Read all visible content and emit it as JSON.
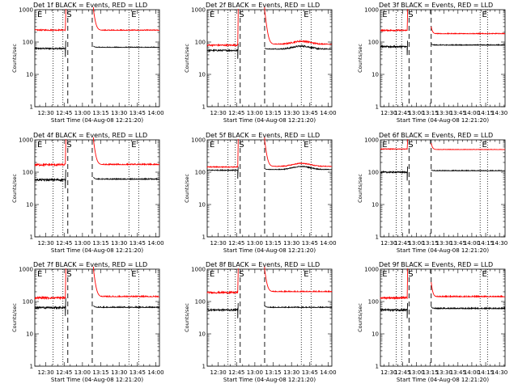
{
  "colors": {
    "events": "#000000",
    "lld": "#ff0000",
    "axis": "#000000",
    "background": "#ffffff"
  },
  "chart_data": [
    {
      "type": "line",
      "title": "Det 1f BLACK = Events, RED = LLD",
      "xlabel": "Start Time (04-Aug-08 12:21:20)",
      "ylabel": "Counts/sec",
      "x_range": [
        "12:21",
        "14:03"
      ],
      "ylim": [
        1,
        1000
      ],
      "y_scale": "log",
      "x_tick_labels": [
        "12:30",
        "12:45",
        "13:00",
        "13:15",
        "13:30",
        "13:45",
        "14:00"
      ],
      "y_tick_labels": [
        "1",
        "10",
        "100",
        "1000"
      ],
      "markers": {
        "dotted": [
          "12:36",
          "12:44",
          "13:38",
          "13:46"
        ],
        "dashed": [
          "12:48",
          "13:08"
        ],
        "labels": {
          "E": [
            "12:23",
            "13:40"
          ],
          "S": [
            "12:47"
          ]
        }
      },
      "gap": [
        "12:47",
        "13:09"
      ],
      "series": [
        {
          "name": "Events",
          "color": "#000000",
          "segments": [
            {
              "start": "12:21",
              "end": "12:46",
              "level": 63,
              "noise": 0.05,
              "spike_to": 110
            },
            {
              "start": "13:09",
              "end": "14:03",
              "level": 68,
              "noise": 0.04,
              "decay_from": 75,
              "hump": 0
            }
          ]
        },
        {
          "name": "LLD",
          "color": "#ff0000",
          "segments": [
            {
              "start": "12:21",
              "end": "12:46",
              "level": 235,
              "noise": 0.04,
              "rise_to": 1000
            },
            {
              "start": "13:09",
              "end": "14:03",
              "level": 230,
              "noise": 0.05,
              "decay_from": 1000,
              "hump": 0
            }
          ]
        }
      ]
    },
    {
      "type": "line",
      "title": "Det 2f BLACK = Events, RED = LLD",
      "xlabel": "Start Time (04-Aug-08 12:21:20)",
      "ylabel": "Counts/sec",
      "x_range": [
        "12:21",
        "14:03"
      ],
      "ylim": [
        1,
        1000
      ],
      "y_scale": "log",
      "x_tick_labels": [
        "12:30",
        "12:45",
        "13:00",
        "13:15",
        "13:30",
        "13:45",
        "14:00"
      ],
      "y_tick_labels": [
        "1",
        "10",
        "100",
        "1000"
      ],
      "markers": {
        "dotted": [
          "12:38",
          "12:44",
          "13:38",
          "13:46"
        ],
        "dashed": [
          "12:48",
          "13:08"
        ],
        "labels": {
          "E": [
            "12:23",
            "13:40"
          ],
          "S": [
            "12:47"
          ]
        }
      },
      "gap": [
        "12:46",
        "13:08"
      ],
      "series": [
        {
          "name": "Events",
          "color": "#000000",
          "segments": [
            {
              "start": "12:21",
              "end": "12:46",
              "level": 55,
              "noise": 0.05,
              "spike_to": 90
            },
            {
              "start": "13:08",
              "end": "14:03",
              "level": 60,
              "noise": 0.05,
              "decay_from": 65,
              "hump": 1
            }
          ]
        },
        {
          "name": "LLD",
          "color": "#ff0000",
          "segments": [
            {
              "start": "12:21",
              "end": "12:46",
              "level": 80,
              "noise": 0.05,
              "rise_to": 1000
            },
            {
              "start": "13:08",
              "end": "14:03",
              "level": 85,
              "noise": 0.05,
              "decay_from": 1000,
              "hump": 1
            }
          ]
        }
      ]
    },
    {
      "type": "line",
      "title": "Det 3f BLACK = Events, RED = LLD",
      "xlabel": "Start Time (04-Aug-08 12:21:20)",
      "ylabel": "Counts/sec",
      "x_range": [
        "12:21",
        "14:36"
      ],
      "ylim": [
        1,
        1000
      ],
      "y_scale": "log",
      "x_tick_labels": [
        "12:30",
        "12:45",
        "13:00",
        "13:15",
        "13:30",
        "13:45",
        "14:00",
        "14:15",
        "14:30"
      ],
      "y_tick_labels": [
        "1",
        "10",
        "100",
        "1000"
      ],
      "markers": {
        "dotted": [
          "12:38",
          "12:44",
          "14:09",
          "14:17"
        ],
        "dashed": [
          "12:52",
          "13:16"
        ],
        "labels": {
          "E": [
            "12:23",
            "14:11"
          ],
          "S": [
            "12:51"
          ]
        }
      },
      "gap": [
        "12:51",
        "13:16"
      ],
      "series": [
        {
          "name": "Events",
          "color": "#000000",
          "segments": [
            {
              "start": "12:21",
              "end": "12:50",
              "level": 72,
              "noise": 0.05,
              "spike_to": 110
            },
            {
              "start": "13:16",
              "end": "14:36",
              "level": 80,
              "noise": 0.04,
              "decay_from": 90,
              "hump": 0
            }
          ]
        },
        {
          "name": "LLD",
          "color": "#ff0000",
          "segments": [
            {
              "start": "12:21",
              "end": "12:50",
              "level": 230,
              "noise": 0.04,
              "rise_to": 1000
            },
            {
              "start": "13:16",
              "end": "14:36",
              "level": 180,
              "noise": 0.04,
              "decay_from": 300,
              "hump": 0
            }
          ]
        }
      ]
    },
    {
      "type": "line",
      "title": "Det 4f BLACK = Events, RED = LLD",
      "xlabel": "Start Time (04-Aug-08 12:21:20)",
      "ylabel": "Counts/sec",
      "x_range": [
        "12:21",
        "14:03"
      ],
      "ylim": [
        1,
        1000
      ],
      "y_scale": "log",
      "x_tick_labels": [
        "12:30",
        "12:45",
        "13:00",
        "13:15",
        "13:30",
        "13:45",
        "14:00"
      ],
      "y_tick_labels": [
        "1",
        "10",
        "100",
        "1000"
      ],
      "markers": {
        "dotted": [
          "12:36",
          "12:44",
          "13:38",
          "13:46"
        ],
        "dashed": [
          "12:48",
          "13:08"
        ],
        "labels": {
          "E": [
            "12:23",
            "13:40"
          ],
          "S": [
            "12:47"
          ]
        }
      },
      "gap": [
        "12:47",
        "13:09"
      ],
      "series": [
        {
          "name": "Events",
          "color": "#000000",
          "segments": [
            {
              "start": "12:21",
              "end": "12:46",
              "level": 58,
              "noise": 0.07,
              "spike_to": 120
            },
            {
              "start": "13:09",
              "end": "14:03",
              "level": 60,
              "noise": 0.06,
              "decay_from": 70,
              "hump": 0
            }
          ]
        },
        {
          "name": "LLD",
          "color": "#ff0000",
          "segments": [
            {
              "start": "12:21",
              "end": "12:46",
              "level": 170,
              "noise": 0.07,
              "rise_to": 1000
            },
            {
              "start": "13:09",
              "end": "14:03",
              "level": 170,
              "noise": 0.07,
              "decay_from": 1000,
              "hump": 0
            }
          ]
        }
      ]
    },
    {
      "type": "line",
      "title": "Det 5f BLACK = Events, RED = LLD",
      "xlabel": "Start Time (04-Aug-08 12:21:20)",
      "ylabel": "Counts/sec",
      "x_range": [
        "12:21",
        "14:03"
      ],
      "ylim": [
        1,
        1000
      ],
      "y_scale": "log",
      "x_tick_labels": [
        "12:30",
        "12:45",
        "13:00",
        "13:15",
        "13:30",
        "13:45",
        "14:00"
      ],
      "y_tick_labels": [
        "1",
        "10",
        "100",
        "1000"
      ],
      "markers": {
        "dotted": [
          "12:38",
          "12:44",
          "13:38",
          "13:46"
        ],
        "dashed": [
          "12:48",
          "13:08"
        ],
        "labels": {
          "E": [
            "12:23",
            "13:40"
          ],
          "S": [
            "12:47"
          ]
        }
      },
      "gap": [
        "12:46",
        "13:08"
      ],
      "series": [
        {
          "name": "Events",
          "color": "#000000",
          "segments": [
            {
              "start": "12:21",
              "end": "12:46",
              "level": 115,
              "noise": 0.03,
              "spike_to": 150
            },
            {
              "start": "13:08",
              "end": "14:03",
              "level": 120,
              "noise": 0.03,
              "decay_from": 130,
              "hump": 1
            }
          ]
        },
        {
          "name": "LLD",
          "color": "#ff0000",
          "segments": [
            {
              "start": "12:21",
              "end": "12:46",
              "level": 145,
              "noise": 0.03,
              "rise_to": 1000
            },
            {
              "start": "13:08",
              "end": "14:03",
              "level": 150,
              "noise": 0.03,
              "decay_from": 1000,
              "hump": 1
            }
          ]
        }
      ]
    },
    {
      "type": "line",
      "title": "Det 6f BLACK = Events, RED = LLD",
      "xlabel": "Start Time (04-Aug-08 12:21:20)",
      "ylabel": "Counts/sec",
      "x_range": [
        "12:21",
        "14:36"
      ],
      "ylim": [
        1,
        1000
      ],
      "y_scale": "log",
      "x_tick_labels": [
        "12:30",
        "12:45",
        "13:00",
        "13:15",
        "13:30",
        "13:45",
        "14:00",
        "14:15",
        "14:30"
      ],
      "y_tick_labels": [
        "1",
        "10",
        "100",
        "1000"
      ],
      "markers": {
        "dotted": [
          "12:38",
          "12:44",
          "14:09",
          "14:17"
        ],
        "dashed": [
          "12:52",
          "13:16"
        ],
        "labels": {
          "E": [
            "12:23",
            "14:11"
          ],
          "S": [
            "12:51"
          ]
        }
      },
      "gap": [
        "12:51",
        "13:16"
      ],
      "series": [
        {
          "name": "Events",
          "color": "#000000",
          "segments": [
            {
              "start": "12:21",
              "end": "12:50",
              "level": 100,
              "noise": 0.04,
              "spike_to": 150
            },
            {
              "start": "13:16",
              "end": "14:36",
              "level": 110,
              "noise": 0.04,
              "decay_from": 120,
              "hump": 0
            }
          ]
        },
        {
          "name": "LLD",
          "color": "#ff0000",
          "segments": [
            {
              "start": "12:21",
              "end": "12:50",
              "level": 520,
              "noise": 0.02,
              "rise_to": 1000
            },
            {
              "start": "13:16",
              "end": "14:36",
              "level": 500,
              "noise": 0.02,
              "decay_from": 800,
              "hump": 0
            }
          ]
        }
      ]
    },
    {
      "type": "line",
      "title": "Det 7f BLACK = Events, RED = LLD",
      "xlabel": "Start Time (04-Aug-08 12:21:20)",
      "ylabel": "Counts/sec",
      "x_range": [
        "12:21",
        "14:03"
      ],
      "ylim": [
        1,
        1000
      ],
      "y_scale": "log",
      "x_tick_labels": [
        "12:30",
        "12:45",
        "13:00",
        "13:15",
        "13:30",
        "13:45",
        "14:00"
      ],
      "y_tick_labels": [
        "1",
        "10",
        "100",
        "1000"
      ],
      "markers": {
        "dotted": [
          "12:36",
          "12:44",
          "13:38",
          "13:46"
        ],
        "dashed": [
          "12:48",
          "13:08"
        ],
        "labels": {
          "E": [
            "12:23",
            "13:40"
          ],
          "S": [
            "12:47"
          ]
        }
      },
      "gap": [
        "12:47",
        "13:09"
      ],
      "series": [
        {
          "name": "Events",
          "color": "#000000",
          "segments": [
            {
              "start": "12:21",
              "end": "12:46",
              "level": 65,
              "noise": 0.07,
              "spike_to": 130
            },
            {
              "start": "13:09",
              "end": "14:03",
              "level": 65,
              "noise": 0.07,
              "decay_from": 75,
              "hump": 0
            }
          ]
        },
        {
          "name": "LLD",
          "color": "#ff0000",
          "segments": [
            {
              "start": "12:21",
              "end": "12:46",
              "level": 130,
              "noise": 0.07,
              "rise_to": 1000
            },
            {
              "start": "13:09",
              "end": "14:03",
              "level": 140,
              "noise": 0.07,
              "decay_from": 1000,
              "hump": 0
            }
          ]
        }
      ]
    },
    {
      "type": "line",
      "title": "Det 8f BLACK = Events, RED = LLD",
      "xlabel": "Start Time (04-Aug-08 12:21:20)",
      "ylabel": "Counts/sec",
      "x_range": [
        "12:21",
        "14:03"
      ],
      "ylim": [
        1,
        1000
      ],
      "y_scale": "log",
      "x_tick_labels": [
        "12:30",
        "12:45",
        "13:00",
        "13:15",
        "13:30",
        "13:45",
        "14:00"
      ],
      "y_tick_labels": [
        "1",
        "10",
        "100",
        "1000"
      ],
      "markers": {
        "dotted": [
          "12:38",
          "12:44",
          "13:38",
          "13:46"
        ],
        "dashed": [
          "12:48",
          "13:08"
        ],
        "labels": {
          "E": [
            "12:23",
            "13:40"
          ],
          "S": [
            "12:47"
          ]
        }
      },
      "gap": [
        "12:46",
        "13:08"
      ],
      "series": [
        {
          "name": "Events",
          "color": "#000000",
          "segments": [
            {
              "start": "12:21",
              "end": "12:46",
              "level": 55,
              "noise": 0.06,
              "spike_to": 90
            },
            {
              "start": "13:08",
              "end": "14:03",
              "level": 65,
              "noise": 0.06,
              "decay_from": 75,
              "hump": 0
            }
          ]
        },
        {
          "name": "LLD",
          "color": "#ff0000",
          "segments": [
            {
              "start": "12:21",
              "end": "12:46",
              "level": 190,
              "noise": 0.06,
              "rise_to": 1000
            },
            {
              "start": "13:08",
              "end": "14:03",
              "level": 200,
              "noise": 0.06,
              "decay_from": 1000,
              "hump": 0
            }
          ]
        }
      ]
    },
    {
      "type": "line",
      "title": "Det 9f BLACK = Events, RED = LLD",
      "xlabel": "Start Time (04-Aug-08 12:21:20)",
      "ylabel": "Counts/sec",
      "x_range": [
        "12:21",
        "14:36"
      ],
      "ylim": [
        1,
        1000
      ],
      "y_scale": "log",
      "x_tick_labels": [
        "12:30",
        "12:45",
        "13:00",
        "13:15",
        "13:30",
        "13:45",
        "14:00",
        "14:15",
        "14:30"
      ],
      "y_tick_labels": [
        "1",
        "10",
        "100",
        "1000"
      ],
      "markers": {
        "dotted": [
          "12:38",
          "12:44",
          "14:09",
          "14:17"
        ],
        "dashed": [
          "12:52",
          "13:16"
        ],
        "labels": {
          "E": [
            "12:23",
            "14:11"
          ],
          "S": [
            "12:51"
          ]
        }
      },
      "gap": [
        "12:51",
        "13:16"
      ],
      "series": [
        {
          "name": "Events",
          "color": "#000000",
          "segments": [
            {
              "start": "12:21",
              "end": "12:50",
              "level": 55,
              "noise": 0.06,
              "spike_to": 90
            },
            {
              "start": "13:16",
              "end": "14:36",
              "level": 60,
              "noise": 0.06,
              "decay_from": 70,
              "hump": 0
            }
          ]
        },
        {
          "name": "LLD",
          "color": "#ff0000",
          "segments": [
            {
              "start": "12:21",
              "end": "12:50",
              "level": 130,
              "noise": 0.06,
              "rise_to": 1000
            },
            {
              "start": "13:16",
              "end": "14:36",
              "level": 140,
              "noise": 0.06,
              "decay_from": 400,
              "hump": 0
            }
          ]
        }
      ]
    }
  ]
}
